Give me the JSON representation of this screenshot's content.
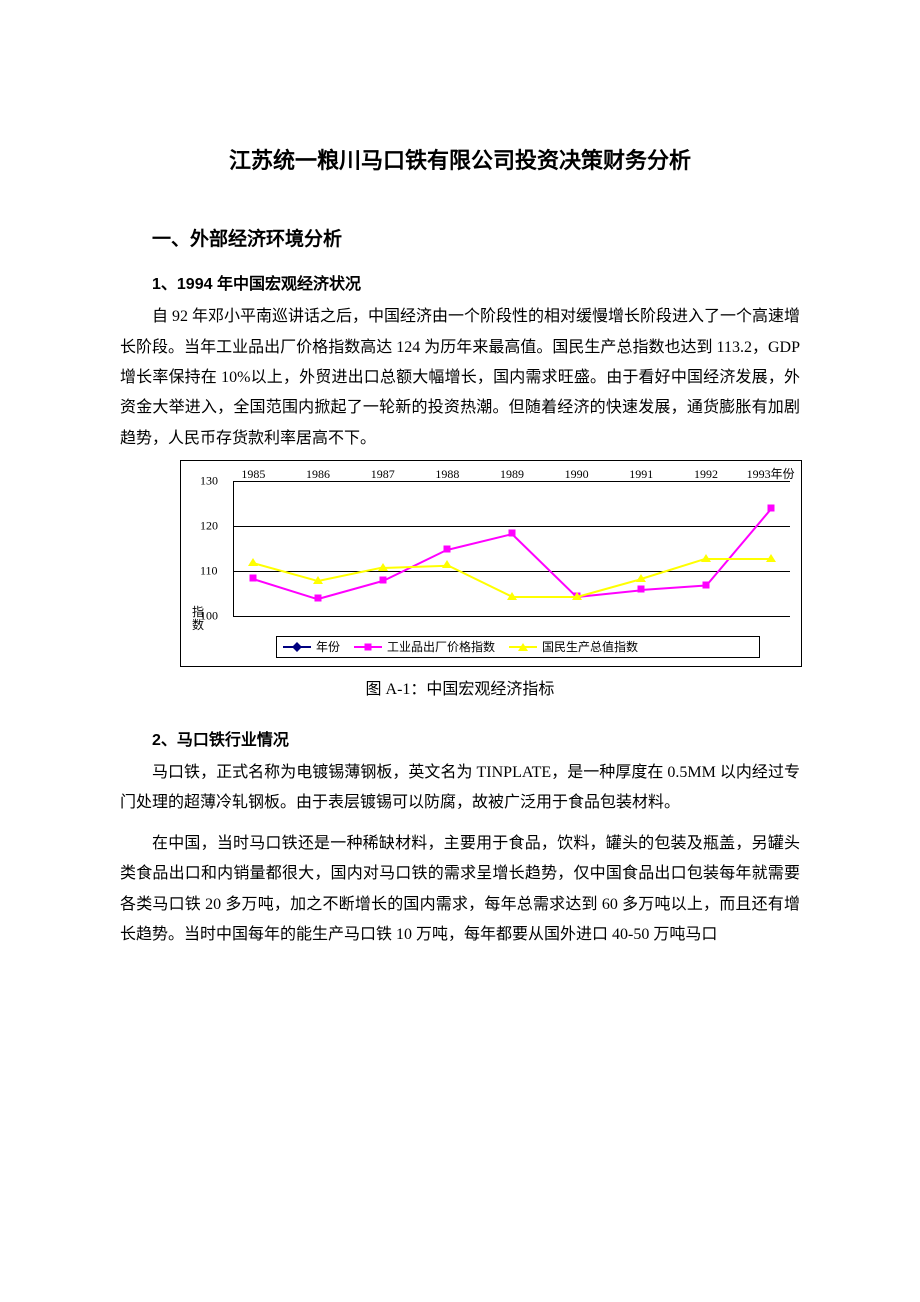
{
  "title": "江苏统一粮川马口铁有限公司投资决策财务分析",
  "section1": {
    "heading": "一、外部经济环境分析",
    "sub1": {
      "heading": "1、1994 年中国宏观经济状况",
      "para": "自 92 年邓小平南巡讲话之后，中国经济由一个阶段性的相对缓慢增长阶段进入了一个高速增长阶段。当年工业品出厂价格指数高达 124 为历年来最高值。国民生产总指数也达到 113.2，GDP 增长率保持在 10%以上，外贸进出口总额大幅增长，国内需求旺盛。由于看好中国经济发展，外资金大举进入，全国范围内掀起了一轮新的投资热潮。但随着经济的快速发展，通货膨胀有加剧趋势，人民币存货款利率居高不下。"
    },
    "chart": {
      "type": "line",
      "x_labels": [
        "1985",
        "1986",
        "1987",
        "1988",
        "1989",
        "1990",
        "1991",
        "1992",
        "1993年份"
      ],
      "y_ticks": [
        100,
        110,
        120,
        130
      ],
      "ylim": [
        100,
        130
      ],
      "y_axis_title": "指数",
      "grid_color": "#000000",
      "background_color": "#ffffff",
      "x_label_fontsize": 12,
      "y_label_fontsize": 12,
      "series": [
        {
          "name": "年份",
          "color": "#000080",
          "marker": "diamond",
          "values": []
        },
        {
          "name": "工业品出厂价格指数",
          "color": "#ff00ff",
          "marker": "square",
          "values": [
            108.5,
            104,
            108,
            115,
            118.5,
            104.5,
            106,
            107,
            124
          ]
        },
        {
          "name": "国民生产总值指数",
          "color": "#ffff00",
          "marker": "triangle",
          "values": [
            112,
            108,
            111,
            111.5,
            104.5,
            104.5,
            108.5,
            113,
            113
          ]
        }
      ],
      "caption": "图 A-1：中国宏观经济指标"
    },
    "sub2": {
      "heading": "2、马口铁行业情况",
      "para1": "马口铁，正式名称为电镀锡薄钢板，英文名为 TINPLATE，是一种厚度在 0.5MM 以内经过专门处理的超薄冷轧钢板。由于表层镀锡可以防腐，故被广泛用于食品包装材料。",
      "para2": "在中国，当时马口铁还是一种稀缺材料，主要用于食品，饮料，罐头的包装及瓶盖，另罐头类食品出口和内销量都很大，国内对马口铁的需求呈增长趋势，仅中国食品出口包装每年就需要各类马口铁 20 多万吨，加之不断增长的国内需求，每年总需求达到 60 多万吨以上，而且还有增长趋势。当时中国每年的能生产马口铁 10 万吨，每年都要从国外进口 40-50 万吨马口"
    }
  }
}
